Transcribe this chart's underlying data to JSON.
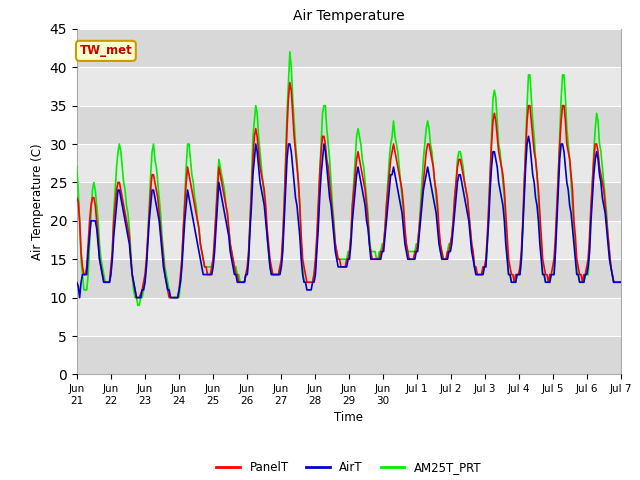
{
  "title": "Air Temperature",
  "ylabel": "Air Temperature (C)",
  "xlabel": "Time",
  "annotation_text": "TW_met",
  "annotation_color": "#cc0000",
  "annotation_bg": "#ffffcc",
  "annotation_border": "#cc9900",
  "ylim": [
    0,
    45
  ],
  "yticks": [
    0,
    5,
    10,
    15,
    20,
    25,
    30,
    35,
    40,
    45
  ],
  "tick_positions": [
    0,
    1,
    2,
    3,
    4,
    5,
    6,
    7,
    8,
    9,
    10,
    11,
    12,
    13,
    14,
    15,
    16
  ],
  "tick_labels": [
    "Jun\n21",
    "Jun\n22",
    "Jun\n23",
    "Jun\n24",
    "Jun\n25",
    "Jun\n26",
    "Jun\n27",
    "Jun\n28",
    "Jun\n29",
    "Jun\n30",
    "Jul 1",
    "Jul 2",
    "Jul 3",
    "Jul 4",
    "Jul 5",
    "Jul 6",
    "Jul 7"
  ],
  "legend_labels": [
    "PanelT",
    "AirT",
    "AM25T_PRT"
  ],
  "legend_colors": [
    "#ff0000",
    "#0000cc",
    "#00ee00"
  ],
  "line_width": 1.2,
  "n_days": 16,
  "pts_per_day": 24,
  "stripe_colors": [
    "#e0e0e0",
    "#ebebeb"
  ],
  "panel_t_values": [
    23,
    22.5,
    20,
    16,
    14,
    13,
    13,
    14,
    17,
    20,
    22,
    23,
    23,
    22,
    20,
    18,
    15,
    14,
    13,
    12,
    12,
    12,
    12,
    12,
    14,
    16,
    20,
    22,
    24,
    25,
    25,
    24,
    23,
    22,
    21,
    20,
    19,
    18,
    15,
    13,
    12,
    11,
    10,
    10,
    10,
    10.5,
    11,
    12,
    13,
    15,
    18,
    21,
    24,
    26,
    26,
    25,
    24,
    23,
    21,
    19,
    17,
    15,
    13,
    12,
    11,
    10,
    10,
    10,
    10,
    10,
    10,
    10,
    11,
    13,
    15,
    19,
    22,
    25,
    27,
    26,
    25,
    24,
    23,
    22,
    21,
    20,
    19,
    17,
    16,
    15,
    14,
    14,
    13,
    13,
    13,
    14,
    15,
    18,
    21,
    24,
    27,
    26,
    25,
    24,
    23,
    22,
    21,
    19,
    17,
    16,
    15,
    14,
    13,
    13,
    12,
    12,
    12,
    12,
    12,
    13,
    14,
    16,
    20,
    24,
    28,
    31,
    32,
    31,
    29,
    27,
    26,
    25,
    24,
    22,
    19,
    17,
    15,
    14,
    13,
    13,
    13,
    13,
    13,
    14,
    15,
    18,
    22,
    27,
    32,
    36,
    38,
    37,
    34,
    31,
    29,
    27,
    25,
    22,
    18,
    15,
    14,
    13,
    12,
    12,
    12,
    12,
    12,
    13,
    15,
    18,
    22,
    26,
    29,
    31,
    31,
    30,
    28,
    27,
    25,
    23,
    21,
    19,
    17,
    16,
    15,
    15,
    14,
    14,
    14,
    14,
    15,
    15,
    16,
    18,
    22,
    24,
    26,
    28,
    29,
    28,
    27,
    26,
    25,
    24,
    22,
    20,
    17,
    16,
    15,
    15,
    15,
    15,
    15,
    15,
    16,
    16,
    17,
    19,
    22,
    24,
    26,
    28,
    29,
    30,
    29,
    28,
    27,
    26,
    25,
    24,
    22,
    19,
    17,
    16,
    15,
    15,
    15,
    15,
    16,
    16,
    17,
    19,
    21,
    23,
    25,
    27,
    29,
    30,
    30,
    29,
    28,
    27,
    25,
    24,
    22,
    19,
    17,
    16,
    15,
    15,
    15,
    16,
    16,
    17,
    18,
    20,
    23,
    25,
    27,
    28,
    28,
    27,
    26,
    25,
    24,
    23,
    21,
    19,
    17,
    16,
    14,
    14,
    13,
    13,
    13,
    13,
    14,
    14,
    15,
    18,
    22,
    26,
    30,
    33,
    34,
    33,
    31,
    29,
    28,
    27,
    26,
    24,
    21,
    18,
    15,
    14,
    13,
    13,
    12,
    13,
    13,
    13,
    14,
    16,
    20,
    25,
    29,
    33,
    35,
    35,
    33,
    31,
    29,
    28,
    26,
    24,
    21,
    18,
    15,
    14,
    13,
    13,
    12,
    13,
    13,
    14,
    15,
    18,
    22,
    26,
    30,
    33,
    35,
    35,
    33,
    30,
    29,
    28,
    26,
    24,
    20,
    18,
    15,
    14,
    13,
    13,
    12,
    13,
    13,
    14,
    15,
    18,
    22,
    25,
    28,
    30,
    30,
    29,
    27,
    26,
    25,
    24,
    22,
    20,
    18,
    16,
    14,
    13,
    12,
    12,
    12,
    12,
    12,
    12
  ],
  "air_t_values": [
    12,
    11.5,
    10,
    12,
    13,
    13,
    13,
    13,
    16,
    18,
    20,
    20,
    20,
    20,
    19,
    17,
    15,
    14,
    13,
    12,
    12,
    12,
    12,
    12,
    13,
    15,
    18,
    20,
    22,
    24,
    24,
    23,
    22,
    21,
    20,
    19,
    18,
    17,
    15,
    13,
    12,
    11,
    10,
    10,
    10,
    10,
    11,
    11,
    12,
    14,
    17,
    20,
    22,
    24,
    24,
    23,
    22,
    21,
    20,
    18,
    16,
    14,
    13,
    12,
    11,
    11,
    10,
    10,
    10,
    10,
    10,
    10,
    11,
    12,
    14,
    17,
    20,
    22,
    24,
    23,
    22,
    21,
    20,
    19,
    18,
    17,
    16,
    15,
    14,
    13,
    13,
    13,
    13,
    13,
    13,
    13,
    14,
    16,
    19,
    22,
    25,
    24,
    23,
    22,
    21,
    20,
    19,
    18,
    16,
    15,
    14,
    13,
    13,
    12,
    12,
    12,
    12,
    12,
    12,
    13,
    13,
    15,
    19,
    22,
    26,
    28,
    30,
    29,
    27,
    25,
    24,
    23,
    22,
    20,
    18,
    16,
    14,
    13,
    13,
    13,
    13,
    13,
    13,
    13,
    14,
    16,
    20,
    24,
    28,
    30,
    30,
    29,
    27,
    25,
    23,
    22,
    20,
    18,
    15,
    13,
    12,
    12,
    11,
    11,
    11,
    11,
    12,
    12,
    13,
    16,
    19,
    23,
    26,
    28,
    30,
    29,
    27,
    25,
    23,
    22,
    20,
    18,
    16,
    15,
    14,
    14,
    14,
    14,
    14,
    14,
    14,
    15,
    15,
    17,
    20,
    22,
    24,
    26,
    27,
    26,
    25,
    24,
    23,
    22,
    20,
    19,
    17,
    15,
    15,
    15,
    15,
    15,
    15,
    15,
    15,
    16,
    16,
    18,
    20,
    22,
    24,
    26,
    26,
    27,
    26,
    25,
    24,
    23,
    22,
    21,
    19,
    17,
    16,
    15,
    15,
    15,
    15,
    15,
    15,
    16,
    16,
    18,
    20,
    22,
    24,
    25,
    26,
    27,
    26,
    25,
    24,
    23,
    22,
    21,
    19,
    17,
    16,
    15,
    15,
    15,
    15,
    15,
    16,
    16,
    17,
    19,
    21,
    23,
    25,
    26,
    26,
    25,
    24,
    23,
    22,
    21,
    20,
    18,
    16,
    15,
    14,
    13,
    13,
    13,
    13,
    13,
    13,
    14,
    14,
    17,
    20,
    24,
    27,
    29,
    29,
    28,
    27,
    25,
    24,
    23,
    22,
    20,
    17,
    15,
    13,
    13,
    12,
    12,
    12,
    12,
    13,
    13,
    13,
    15,
    19,
    23,
    27,
    30,
    31,
    30,
    28,
    26,
    25,
    23,
    22,
    20,
    17,
    15,
    13,
    13,
    12,
    12,
    12,
    12,
    13,
    13,
    13,
    16,
    20,
    24,
    28,
    30,
    30,
    29,
    27,
    25,
    24,
    22,
    21,
    19,
    17,
    15,
    13,
    13,
    12,
    12,
    12,
    12,
    13,
    13,
    14,
    16,
    20,
    23,
    26,
    28,
    29,
    28,
    26,
    25,
    23,
    22,
    21,
    19,
    17,
    15,
    14,
    13,
    12,
    12,
    12,
    12,
    12,
    12
  ],
  "am25t_values": [
    27,
    24,
    20,
    15,
    13,
    11,
    11,
    11,
    13,
    17,
    21,
    24,
    25,
    24,
    22,
    20,
    17,
    15,
    14,
    13,
    12,
    12,
    12,
    12,
    13,
    16,
    21,
    24,
    27,
    29,
    30,
    29,
    27,
    25,
    24,
    22,
    21,
    19,
    16,
    13,
    11,
    10,
    10,
    9,
    9,
    10,
    10,
    11,
    12,
    14,
    18,
    22,
    26,
    29,
    30,
    28,
    27,
    25,
    23,
    21,
    18,
    16,
    14,
    13,
    12,
    11,
    10,
    10,
    10,
    10,
    10,
    10,
    10,
    12,
    15,
    19,
    23,
    27,
    30,
    30,
    28,
    26,
    25,
    23,
    22,
    20,
    19,
    17,
    16,
    15,
    14,
    14,
    14,
    14,
    14,
    14,
    15,
    17,
    21,
    25,
    28,
    27,
    26,
    25,
    24,
    22,
    21,
    19,
    17,
    16,
    15,
    14,
    14,
    13,
    13,
    12,
    12,
    12,
    12,
    13,
    13,
    16,
    20,
    25,
    31,
    33,
    35,
    34,
    31,
    29,
    27,
    25,
    23,
    21,
    18,
    16,
    14,
    13,
    13,
    13,
    13,
    13,
    13,
    14,
    14,
    17,
    22,
    28,
    34,
    38,
    42,
    40,
    36,
    33,
    30,
    28,
    25,
    22,
    17,
    14,
    12,
    12,
    12,
    12,
    12,
    12,
    12,
    13,
    14,
    17,
    21,
    26,
    30,
    34,
    35,
    35,
    32,
    30,
    28,
    25,
    22,
    20,
    17,
    16,
    15,
    15,
    15,
    15,
    15,
    15,
    15,
    16,
    16,
    18,
    22,
    25,
    28,
    31,
    32,
    31,
    30,
    28,
    27,
    25,
    23,
    21,
    18,
    16,
    16,
    16,
    16,
    15,
    15,
    16,
    16,
    17,
    17,
    19,
    22,
    25,
    28,
    30,
    31,
    33,
    31,
    30,
    29,
    27,
    25,
    23,
    21,
    18,
    17,
    16,
    16,
    16,
    16,
    16,
    16,
    17,
    17,
    19,
    22,
    25,
    28,
    30,
    32,
    33,
    32,
    30,
    29,
    27,
    25,
    23,
    21,
    18,
    16,
    16,
    15,
    15,
    15,
    16,
    17,
    17,
    18,
    20,
    23,
    25,
    28,
    29,
    29,
    28,
    27,
    25,
    24,
    23,
    21,
    19,
    17,
    16,
    14,
    13,
    13,
    13,
    13,
    13,
    14,
    14,
    14,
    17,
    21,
    26,
    31,
    36,
    37,
    36,
    33,
    30,
    29,
    27,
    25,
    23,
    19,
    16,
    13,
    13,
    12,
    12,
    12,
    12,
    13,
    13,
    13,
    15,
    19,
    24,
    30,
    35,
    39,
    39,
    36,
    33,
    31,
    28,
    26,
    23,
    19,
    16,
    13,
    13,
    12,
    12,
    12,
    12,
    13,
    13,
    13,
    16,
    21,
    26,
    31,
    36,
    39,
    39,
    36,
    32,
    30,
    28,
    25,
    22,
    19,
    16,
    14,
    13,
    12,
    12,
    12,
    12,
    13,
    13,
    13,
    16,
    21,
    25,
    29,
    32,
    34,
    33,
    30,
    29,
    27,
    25,
    23,
    21,
    18,
    16,
    14,
    13,
    12,
    12,
    12,
    12,
    12,
    12
  ]
}
